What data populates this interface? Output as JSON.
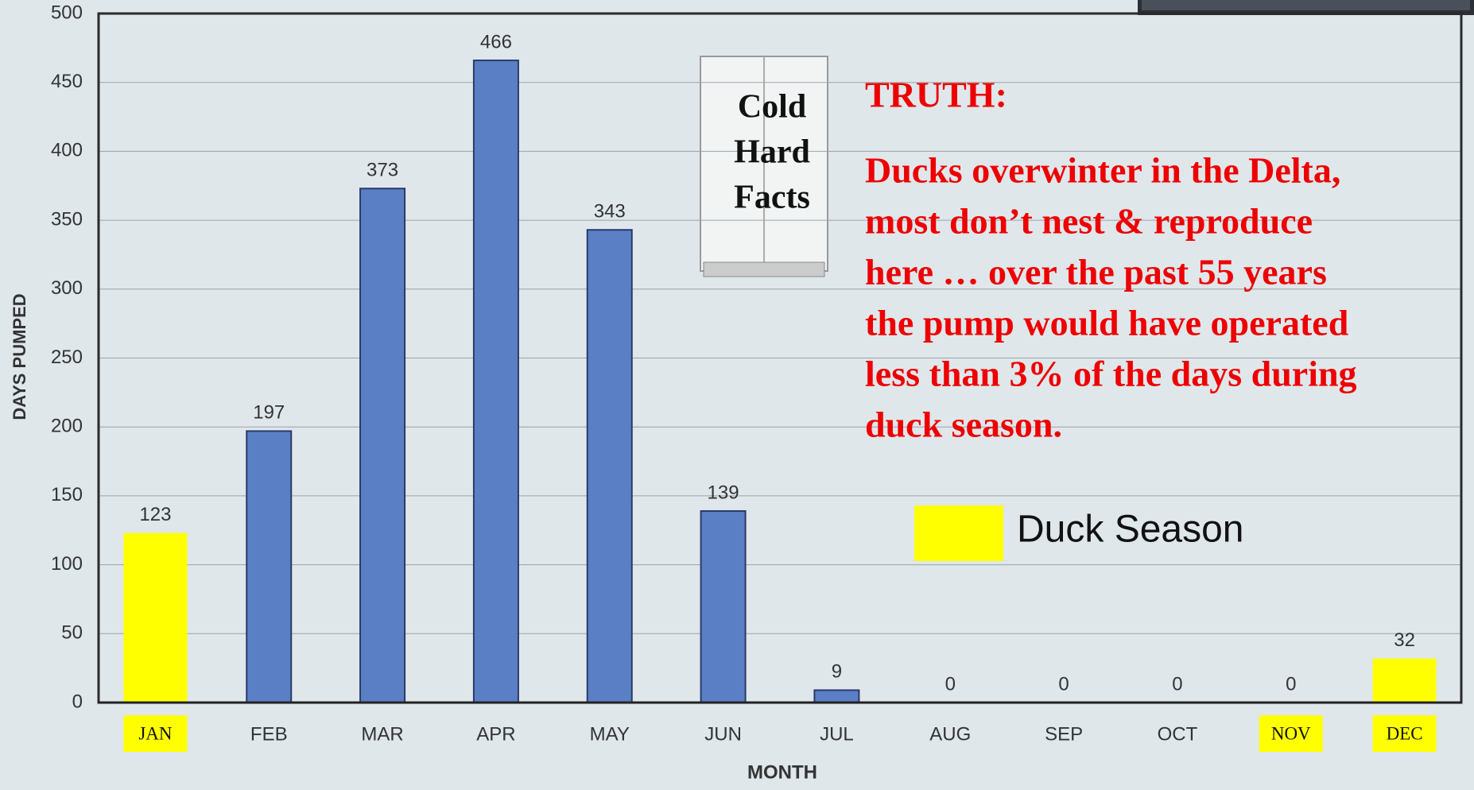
{
  "chart_data": {
    "type": "bar",
    "y_label": "DAYS PUMPED",
    "x_label": "MONTH",
    "categories": [
      "JAN",
      "FEB",
      "MAR",
      "APR",
      "MAY",
      "JUN",
      "JUL",
      "AUG",
      "SEP",
      "OCT",
      "NOV",
      "DEC"
    ],
    "values": [
      123,
      197,
      373,
      466,
      343,
      139,
      9,
      0,
      0,
      0,
      0,
      32
    ],
    "color": "#5b7fc4",
    "highlighted": [
      true,
      false,
      false,
      false,
      false,
      false,
      false,
      false,
      false,
      false,
      true,
      true
    ],
    "highlight_color": "#ffff00",
    "legend": "Duck Season",
    "ylim": [
      0,
      500
    ],
    "yticks": [
      0,
      50,
      100,
      150,
      200,
      250,
      300,
      350,
      400,
      450,
      500
    ],
    "grid": true,
    "fridge_label": [
      "Cold",
      "Hard",
      "Facts"
    ],
    "annotation_title": "TRUTH:",
    "annotation_lines": [
      "Ducks overwinter in the Delta,",
      "most don’t nest & reproduce",
      "here … over the past 55 years",
      "the pump would have operated",
      "less than 3% of the days during",
      "duck season."
    ]
  }
}
